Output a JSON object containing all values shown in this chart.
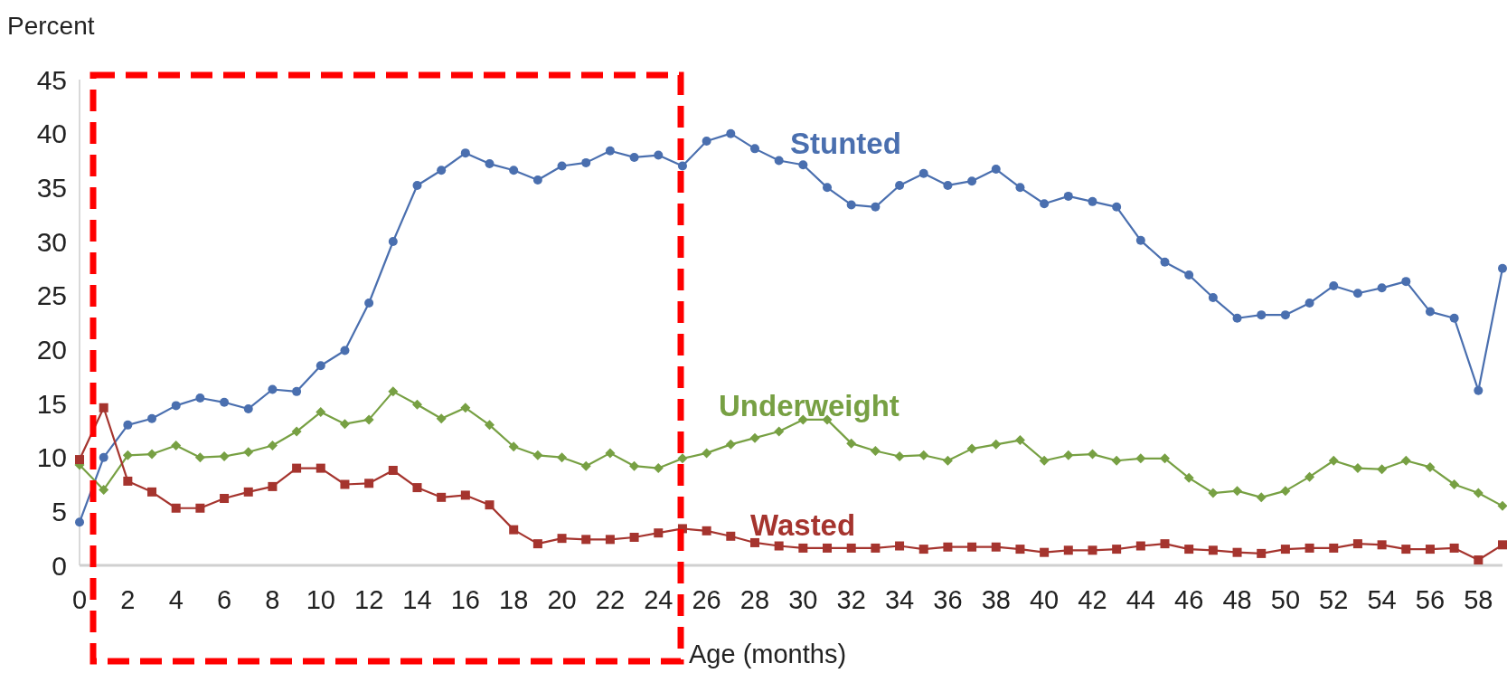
{
  "chart_data": {
    "type": "line",
    "ylabel": "Percent",
    "xlabel": "Age (months)",
    "xlim": [
      0,
      59
    ],
    "ylim": [
      0,
      45
    ],
    "xticks": [
      0,
      2,
      4,
      6,
      8,
      10,
      12,
      14,
      16,
      18,
      20,
      22,
      24,
      26,
      28,
      30,
      32,
      34,
      36,
      38,
      40,
      42,
      44,
      46,
      48,
      50,
      52,
      54,
      56,
      58
    ],
    "yticks": [
      0,
      5,
      10,
      15,
      20,
      25,
      30,
      35,
      40,
      45
    ],
    "x": [
      0,
      1,
      2,
      3,
      4,
      5,
      6,
      7,
      8,
      9,
      10,
      11,
      12,
      13,
      14,
      15,
      16,
      17,
      18,
      19,
      20,
      21,
      22,
      23,
      24,
      25,
      26,
      27,
      28,
      29,
      30,
      31,
      32,
      33,
      34,
      35,
      36,
      37,
      38,
      39,
      40,
      41,
      42,
      43,
      44,
      45,
      46,
      47,
      48,
      49,
      50,
      51,
      52,
      53,
      54,
      55,
      56,
      57,
      58,
      59
    ],
    "series": [
      {
        "name": "Stunted",
        "color": "#4a6faf",
        "marker": "circle",
        "values": [
          4,
          10,
          13,
          13.6,
          14.8,
          15.5,
          15.1,
          14.5,
          16.3,
          16.1,
          18.5,
          19.9,
          24.3,
          30,
          35.2,
          36.6,
          38.2,
          37.2,
          36.6,
          35.7,
          37,
          37.3,
          38.4,
          37.8,
          38,
          37,
          39.3,
          40,
          38.6,
          37.5,
          37.1,
          35,
          33.4,
          33.2,
          35.2,
          36.3,
          35.2,
          35.6,
          36.7,
          35,
          33.5,
          34.2,
          33.7,
          33.2,
          30.1,
          28.1,
          26.9,
          24.8,
          22.9,
          23.2,
          23.2,
          24.3,
          25.9,
          25.2,
          25.7,
          26.3,
          23.5,
          22.9,
          16.2,
          27.5
        ]
      },
      {
        "name": "Underweight",
        "color": "#77a043",
        "marker": "diamond",
        "values": [
          9.3,
          7,
          10.2,
          10.3,
          11.1,
          10,
          10.1,
          10.5,
          11.1,
          12.4,
          14.2,
          13.1,
          13.5,
          16.1,
          14.9,
          13.6,
          14.6,
          13,
          11,
          10.2,
          10,
          9.2,
          10.4,
          9.2,
          9,
          9.9,
          10.4,
          11.2,
          11.8,
          12.4,
          13.5,
          13.5,
          11.3,
          10.6,
          10.1,
          10.2,
          9.7,
          10.8,
          11.2,
          11.6,
          9.7,
          10.2,
          10.3,
          9.7,
          9.9,
          9.9,
          8.1,
          6.7,
          6.9,
          6.3,
          6.9,
          8.2,
          9.7,
          9,
          8.9,
          9.7,
          9.1,
          7.5,
          6.7,
          5.5
        ]
      },
      {
        "name": "Wasted",
        "color": "#a5342e",
        "marker": "square",
        "values": [
          9.8,
          14.6,
          7.8,
          6.8,
          5.3,
          5.3,
          6.2,
          6.8,
          7.3,
          9,
          9,
          7.5,
          7.6,
          8.8,
          7.2,
          6.3,
          6.5,
          5.6,
          3.3,
          2,
          2.5,
          2.4,
          2.4,
          2.6,
          3,
          3.4,
          3.2,
          2.7,
          2.1,
          1.8,
          1.6,
          1.6,
          1.6,
          1.6,
          1.8,
          1.5,
          1.7,
          1.7,
          1.7,
          1.5,
          1.2,
          1.4,
          1.4,
          1.5,
          1.8,
          2,
          1.5,
          1.4,
          1.2,
          1.1,
          1.5,
          1.6,
          1.6,
          2,
          1.9,
          1.5,
          1.5,
          1.6,
          0.5,
          1.9
        ]
      }
    ],
    "grid": false,
    "line_style": "solid"
  }
}
